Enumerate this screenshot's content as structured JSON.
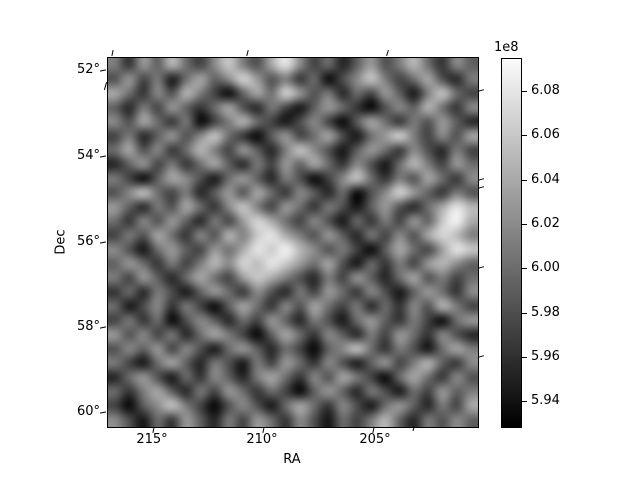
{
  "chart_data": {
    "type": "heatmap",
    "title": "",
    "xlabel": "RA",
    "ylabel": "Dec",
    "x_tick_labels": [
      "215°",
      "210°",
      "205°"
    ],
    "y_tick_labels": [
      "52°",
      "54°",
      "56°",
      "58°",
      "60°"
    ],
    "x_range_deg": [
      217.0,
      200.2
    ],
    "y_range_deg": [
      51.7,
      60.4
    ],
    "grid": "off",
    "colorbar": {
      "offset_label": "1e8",
      "tick_labels": [
        "6.08",
        "6.06",
        "6.04",
        "6.02",
        "6.00",
        "5.98",
        "5.96",
        "5.94"
      ],
      "vmin_1e8": 5.928,
      "vmax_1e8": 6.095,
      "cmap": "gray",
      "position": "right"
    },
    "values_unit": "1e8",
    "values_scale": 0.01,
    "values": [
      [
        601,
        596,
        603,
        599,
        605,
        600,
        597,
        602,
        606,
        601,
        598,
        604,
        608,
        602,
        597,
        600,
        595,
        599,
        603,
        598,
        601,
        605,
        600,
        596,
        602,
        599
      ],
      [
        598,
        603,
        597,
        601,
        594,
        600,
        604,
        599,
        602,
        607,
        603,
        598,
        601,
        596,
        600,
        593,
        598,
        602,
        606,
        601,
        597,
        600,
        604,
        598,
        595,
        601
      ],
      [
        604,
        600,
        596,
        602,
        598,
        605,
        601,
        597,
        593,
        599,
        604,
        600,
        607,
        603,
        598,
        601,
        595,
        600,
        597,
        603,
        599,
        594,
        601,
        606,
        600,
        597
      ],
      [
        599,
        595,
        601,
        597,
        603,
        599,
        596,
        600,
        604,
        598,
        595,
        601,
        597,
        594,
        599,
        603,
        600,
        596,
        593,
        598,
        602,
        599,
        605,
        600,
        596,
        602
      ],
      [
        602,
        598,
        604,
        600,
        596,
        601,
        593,
        597,
        601,
        605,
        600,
        597,
        594,
        598,
        602,
        597,
        593,
        599,
        604,
        600,
        596,
        601,
        598,
        603,
        599,
        595
      ],
      [
        597,
        601,
        595,
        599,
        603,
        598,
        602,
        606,
        600,
        596,
        593,
        599,
        603,
        597,
        600,
        604,
        598,
        594,
        600,
        603,
        607,
        601,
        597,
        602,
        598,
        604
      ],
      [
        600,
        604,
        598,
        602,
        596,
        600,
        605,
        601,
        597,
        603,
        599,
        595,
        601,
        606,
        602,
        598,
        594,
        599,
        603,
        600,
        596,
        602,
        598,
        595,
        601,
        597
      ],
      [
        595,
        599,
        603,
        597,
        601,
        596,
        600,
        604,
        599,
        595,
        601,
        597,
        603,
        599,
        604,
        600,
        596,
        602,
        598,
        594,
        600,
        605,
        601,
        597,
        603,
        600
      ],
      [
        601,
        597,
        593,
        599,
        604,
        602,
        598,
        594,
        600,
        603,
        599,
        595,
        601,
        598,
        593,
        597,
        602,
        606,
        600,
        596,
        601,
        598,
        604,
        600,
        596,
        602
      ],
      [
        598,
        602,
        606,
        600,
        597,
        601,
        595,
        599,
        603,
        598,
        604,
        600,
        596,
        602,
        599,
        595,
        600,
        593,
        598,
        602,
        607,
        603,
        599,
        596,
        601,
        598
      ],
      [
        603,
        599,
        595,
        601,
        598,
        604,
        600,
        596,
        602,
        606,
        601,
        597,
        603,
        600,
        596,
        601,
        598,
        594,
        599,
        603,
        598,
        595,
        600,
        604,
        608,
        605
      ],
      [
        600,
        596,
        602,
        598,
        603,
        599,
        595,
        601,
        597,
        603,
        607,
        604,
        600,
        597,
        602,
        598,
        594,
        600,
        596,
        601,
        597,
        603,
        599,
        606,
        609,
        604
      ],
      [
        597,
        601,
        598,
        604,
        600,
        596,
        602,
        598,
        605,
        601,
        606,
        608,
        604,
        601,
        598,
        603,
        599,
        595,
        601,
        597,
        602,
        598,
        604,
        607,
        605,
        601
      ],
      [
        602,
        598,
        594,
        600,
        603,
        599,
        597,
        603,
        600,
        604,
        608,
        606,
        609,
        605,
        602,
        598,
        601,
        597,
        593,
        599,
        604,
        600,
        597,
        603,
        608,
        606
      ],
      [
        599,
        603,
        600,
        596,
        601,
        597,
        601,
        605,
        602,
        607,
        605,
        608,
        606,
        603,
        600,
        604,
        598,
        594,
        600,
        596,
        601,
        597,
        603,
        605,
        602,
        599
      ],
      [
        601,
        597,
        603,
        599,
        595,
        600,
        604,
        600,
        597,
        603,
        606,
        604,
        601,
        598,
        595,
        601,
        597,
        603,
        599,
        595,
        600,
        604,
        598,
        601,
        597,
        600
      ],
      [
        596,
        600,
        595,
        601,
        598,
        594,
        599,
        603,
        600,
        596,
        602,
        598,
        595,
        601,
        597,
        603,
        600,
        596,
        602,
        598,
        594,
        599,
        603,
        600,
        596,
        602
      ],
      [
        600,
        594,
        598,
        602,
        596,
        601,
        597,
        593,
        599,
        604,
        600,
        596,
        602,
        598,
        604,
        600,
        597,
        601,
        595,
        600,
        596,
        602,
        598,
        605,
        601,
        597
      ],
      [
        597,
        601,
        596,
        600,
        593,
        598,
        602,
        599,
        595,
        600,
        597,
        603,
        599,
        595,
        601,
        598,
        594,
        600,
        603,
        599,
        596,
        601,
        597,
        593,
        600,
        603
      ],
      [
        603,
        598,
        602,
        597,
        601,
        595,
        600,
        604,
        601,
        597,
        593,
        599,
        604,
        600,
        596,
        602,
        599,
        595,
        601,
        597,
        603,
        600,
        596,
        602,
        598,
        595
      ],
      [
        598,
        602,
        599,
        603,
        597,
        602,
        598,
        594,
        600,
        603,
        599,
        595,
        600,
        597,
        593,
        599,
        602,
        606,
        600,
        596,
        601,
        598,
        594,
        600,
        604,
        601
      ],
      [
        601,
        597,
        594,
        600,
        604,
        599,
        595,
        601,
        598,
        594,
        601,
        597,
        603,
        600,
        596,
        602,
        598,
        594,
        599,
        603,
        597,
        601,
        605,
        599,
        596,
        602
      ],
      [
        595,
        600,
        603,
        598,
        594,
        600,
        596,
        602,
        599,
        595,
        601,
        604,
        600,
        596,
        602,
        598,
        604,
        601,
        597,
        593,
        600,
        604,
        600,
        596,
        602,
        598
      ],
      [
        600,
        596,
        601,
        604,
        599,
        595,
        601,
        597,
        603,
        600,
        596,
        600,
        597,
        593,
        599,
        603,
        599,
        595,
        601,
        598,
        594,
        600,
        597,
        603,
        599,
        601
      ],
      [
        597,
        593,
        599,
        602,
        606,
        601,
        597,
        593,
        598,
        602,
        598,
        594,
        600,
        604,
        600,
        596,
        602,
        598,
        594,
        600,
        603,
        599,
        595,
        601,
        597,
        604
      ],
      [
        602,
        598,
        594,
        600,
        596,
        603,
        599,
        595,
        601,
        597,
        603,
        600,
        596,
        602,
        598,
        594,
        600,
        597,
        601,
        605,
        599,
        595,
        601,
        598,
        602,
        599
      ]
    ]
  }
}
